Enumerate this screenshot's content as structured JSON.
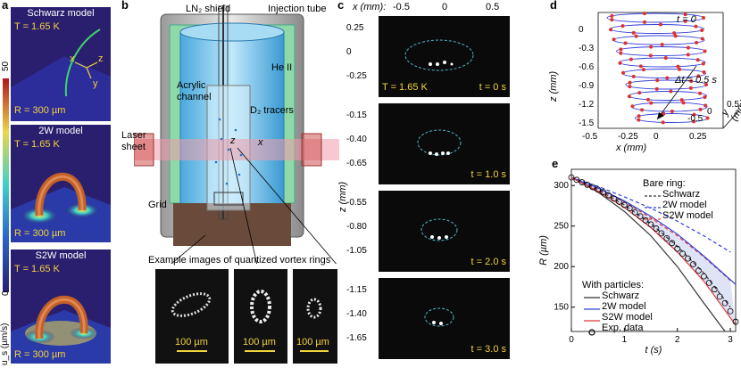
{
  "panel_a": {
    "label": "a",
    "tiles": [
      {
        "title": "Schwarz model",
        "T": "T = 1.65 K",
        "R": "R = 300 µm"
      },
      {
        "title": "2W model",
        "T": "T = 1.65 K",
        "R": "R = 300 µm"
      },
      {
        "title": "S2W model",
        "T": "T = 1.65 K",
        "R": "R = 300 µm"
      }
    ],
    "axes": {
      "x": "x",
      "y": "y",
      "z": "z"
    },
    "colorbar": {
      "max": "50",
      "min": "0",
      "label": "u_s (µm/s)"
    },
    "colors": {
      "bg": "#2a1f6e",
      "ring": "#c2602a"
    }
  },
  "panel_b": {
    "label": "b",
    "labels": {
      "shield": "LN₂ shield",
      "tube": "Injection tube",
      "heii": "He II",
      "channel_1": "Acrylic",
      "channel_2": "channel",
      "tracers": "D₂ tracers",
      "laser_1": "Laser",
      "laser_2": "sheet",
      "grid": "Grid",
      "z": "z",
      "x": "x",
      "example": "Example images of quantized vortex rings"
    },
    "scalebars": [
      "100 µm",
      "100 µm",
      "100 µm"
    ]
  },
  "panel_c": {
    "label": "c",
    "x_label": "x (mm):",
    "x_ticks": [
      "-0.5",
      "0",
      "0.5"
    ],
    "z_label": "z (mm)",
    "frames": [
      {
        "ticks": [
          "0.25",
          "0",
          "-0.25"
        ],
        "T": "T = 1.65 K",
        "t": "t = 0 s"
      },
      {
        "ticks": [
          "-0.15",
          "-0.40",
          "-0.65"
        ],
        "T": "",
        "t": "t = 1.0 s"
      },
      {
        "ticks": [
          "-0.55",
          "-0.80",
          "-1.05"
        ],
        "T": "",
        "t": "t = 2.0 s"
      },
      {
        "ticks": [
          "-1.15",
          "-1.40",
          "-1.65"
        ],
        "T": "",
        "t": "t = 3.0 s"
      }
    ]
  },
  "panel_d": {
    "label": "d",
    "z_ticks": [
      "0",
      "-0.3",
      "-0.6",
      "-0.9",
      "-1.2",
      "-1.5"
    ],
    "x_ticks": [
      "-0.5",
      "-0.25",
      "0",
      "0.25"
    ],
    "y_ticks": [
      "-0.5",
      "0",
      "0.5"
    ],
    "z_label": "z (mm)",
    "x_label": "x (mm)",
    "y_label": "y (mm)",
    "ann_t0": "t = 0",
    "ann_dt": "Δt = 0.5 s"
  },
  "panel_e": {
    "label": "e",
    "legend_bare_title": "Bare ring:",
    "legend_bare": [
      "Schwarz",
      "2W model",
      "S2W model"
    ],
    "legend_part_title": "With particles:",
    "legend_part": [
      "Schwarz",
      "2W model",
      "S2W model",
      "Exp. data"
    ]
  },
  "chart_data": {
    "type": "line",
    "xlabel": "t (s)",
    "ylabel": "R (µm)",
    "xlim": [
      0,
      3.1
    ],
    "ylim": [
      120,
      320
    ],
    "x_ticks": [
      0,
      1,
      2,
      3
    ],
    "y_ticks": [
      150,
      200,
      250,
      300
    ],
    "legend_position": "top-right",
    "series": [
      {
        "name": "Schwarz",
        "group": "Bare ring",
        "style": "dashed",
        "color": "#333333",
        "x": [
          0,
          0.5,
          1,
          1.5,
          2,
          2.5,
          3
        ],
        "y": [
          310,
          295,
          276,
          253,
          225,
          192,
          150
        ]
      },
      {
        "name": "2W model",
        "group": "Bare ring",
        "style": "dashed",
        "color": "#2f3fd8",
        "x": [
          0,
          0.5,
          1,
          1.5,
          2,
          2.5,
          3
        ],
        "y": [
          310,
          299,
          286,
          272,
          256,
          238,
          218
        ]
      },
      {
        "name": "S2W model",
        "group": "Bare ring",
        "style": "dashed",
        "color": "#e03a3a",
        "x": [
          0,
          0.5,
          1,
          1.5,
          2,
          2.5,
          3
        ],
        "y": [
          310,
          296,
          280,
          260,
          238,
          212,
          183
        ]
      },
      {
        "name": "Schwarz",
        "group": "With particles",
        "style": "solid",
        "color": "#333333",
        "x": [
          0,
          0.5,
          1,
          1.5,
          2,
          2.5,
          2.9
        ],
        "y": [
          310,
          292,
          268,
          238,
          200,
          155,
          120
        ]
      },
      {
        "name": "2W model",
        "group": "With particles",
        "style": "solid",
        "color": "#2f3fd8",
        "x": [
          0,
          0.5,
          1,
          1.5,
          2,
          2.5,
          3.1
        ],
        "y": [
          310,
          297,
          281,
          262,
          240,
          213,
          178
        ]
      },
      {
        "name": "S2W model",
        "group": "With particles",
        "style": "solid",
        "color": "#e03a3a",
        "x": [
          0,
          0.5,
          1,
          1.5,
          2,
          2.5,
          3.1
        ],
        "y": [
          310,
          293,
          273,
          248,
          218,
          182,
          128
        ]
      },
      {
        "name": "Exp. data",
        "group": "With particles",
        "style": "markers",
        "color": "#000000",
        "x": [
          0,
          0.1,
          0.2,
          0.3,
          0.4,
          0.5,
          0.6,
          0.7,
          0.8,
          0.9,
          1.0,
          1.1,
          1.2,
          1.3,
          1.4,
          1.5,
          1.6,
          1.7,
          1.8,
          1.9,
          2.0,
          2.1,
          2.2,
          2.3,
          2.4,
          2.5,
          2.6,
          2.7,
          2.8,
          2.9,
          3.0,
          3.1
        ],
        "y": [
          310,
          307,
          304,
          301,
          298,
          295,
          292,
          288,
          284,
          280,
          276,
          272,
          267,
          262,
          257,
          252,
          247,
          241,
          235,
          229,
          222,
          216,
          210,
          203,
          195,
          188,
          180,
          172,
          163,
          155,
          145,
          132
        ]
      }
    ]
  }
}
